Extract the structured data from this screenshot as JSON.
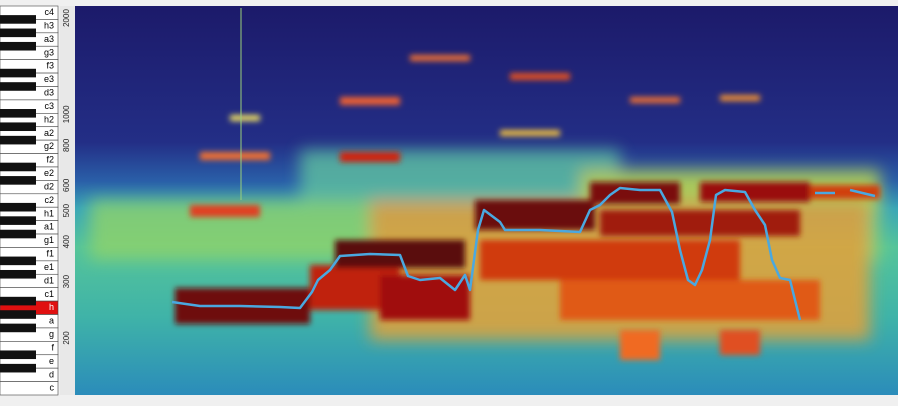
{
  "keyboard": {
    "keys": [
      "c4",
      "h3",
      "a3",
      "g3",
      "f3",
      "e3",
      "d3",
      "c3",
      "h2",
      "a2",
      "g2",
      "f2",
      "e2",
      "d2",
      "c2",
      "h1",
      "a1",
      "g1",
      "f1",
      "e1",
      "d1",
      "c1",
      "h",
      "a",
      "g",
      "f",
      "e",
      "d",
      "c"
    ],
    "highlighted": "h"
  },
  "frequency_axis": {
    "labels": [
      2000,
      1000,
      800,
      600,
      500,
      400,
      300,
      200
    ]
  }
}
